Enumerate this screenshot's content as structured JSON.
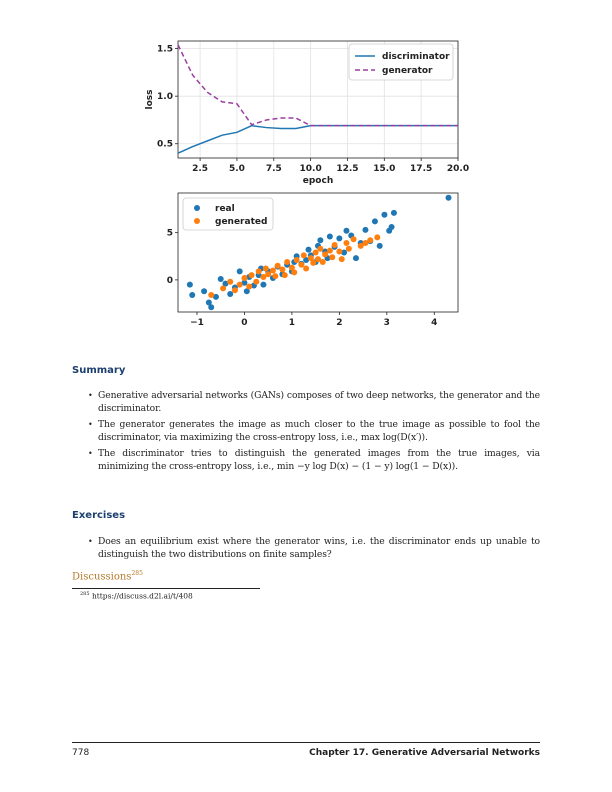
{
  "chart_data": [
    {
      "type": "line",
      "xlabel": "epoch",
      "ylabel": "loss",
      "xlim": [
        1,
        20
      ],
      "ylim": [
        0.35,
        1.58
      ],
      "xticks": [
        "2.5",
        "5.0",
        "7.5",
        "10.0",
        "12.5",
        "15.0",
        "17.5",
        "20.0"
      ],
      "yticks": [
        "0.5",
        "1.0",
        "1.5"
      ],
      "legend_position": "top-right",
      "grid": true,
      "x": [
        1,
        2,
        3,
        4,
        5,
        6,
        7,
        8,
        9,
        10,
        11,
        12,
        13,
        14,
        15,
        16,
        17,
        18,
        19,
        20
      ],
      "series": [
        {
          "name": "discriminator",
          "color": "#1f77b4",
          "style": "solid",
          "values": [
            0.4,
            0.47,
            0.53,
            0.59,
            0.62,
            0.69,
            0.67,
            0.66,
            0.66,
            0.69,
            0.69,
            0.69,
            0.69,
            0.69,
            0.69,
            0.69,
            0.69,
            0.69,
            0.69,
            0.69
          ]
        },
        {
          "name": "generator",
          "color": "#9b3ea0",
          "style": "dashed",
          "values": [
            1.54,
            1.22,
            1.04,
            0.94,
            0.92,
            0.7,
            0.75,
            0.77,
            0.77,
            0.69,
            0.69,
            0.69,
            0.69,
            0.69,
            0.69,
            0.69,
            0.69,
            0.69,
            0.69,
            0.69
          ]
        }
      ]
    },
    {
      "type": "scatter",
      "xlim": [
        -1.4,
        4.5
      ],
      "ylim": [
        -3.4,
        9.2
      ],
      "xticks": [
        "−1",
        "0",
        "1",
        "2",
        "3",
        "4"
      ],
      "yticks": [
        "0",
        "5"
      ],
      "legend_position": "top-left",
      "series": [
        {
          "name": "real",
          "color": "#1f77b4",
          "points": [
            [
              -1.15,
              -0.5
            ],
            [
              -1.1,
              -1.6
            ],
            [
              -0.85,
              -1.2
            ],
            [
              -0.75,
              -2.4
            ],
            [
              -0.7,
              -2.9
            ],
            [
              -0.6,
              -1.8
            ],
            [
              -0.5,
              0.1
            ],
            [
              -0.4,
              -0.4
            ],
            [
              -0.3,
              -1.5
            ],
            [
              -0.2,
              -0.8
            ],
            [
              -0.1,
              0.9
            ],
            [
              0.0,
              -0.3
            ],
            [
              0.05,
              -1.2
            ],
            [
              0.1,
              0.3
            ],
            [
              0.2,
              -0.6
            ],
            [
              0.3,
              0.5
            ],
            [
              0.35,
              1.2
            ],
            [
              0.4,
              -0.5
            ],
            [
              0.5,
              0.9
            ],
            [
              0.6,
              0.2
            ],
            [
              0.7,
              1.4
            ],
            [
              0.8,
              0.6
            ],
            [
              0.9,
              1.6
            ],
            [
              1.0,
              0.9
            ],
            [
              1.05,
              1.9
            ],
            [
              1.1,
              2.5
            ],
            [
              1.2,
              1.7
            ],
            [
              1.3,
              2.1
            ],
            [
              1.35,
              3.2
            ],
            [
              1.4,
              2.6
            ],
            [
              1.5,
              1.9
            ],
            [
              1.55,
              3.6
            ],
            [
              1.6,
              4.2
            ],
            [
              1.7,
              3.0
            ],
            [
              1.75,
              2.3
            ],
            [
              1.8,
              4.6
            ],
            [
              1.9,
              3.5
            ],
            [
              2.0,
              4.4
            ],
            [
              2.1,
              2.9
            ],
            [
              2.15,
              5.2
            ],
            [
              2.25,
              4.7
            ],
            [
              2.35,
              2.3
            ],
            [
              2.45,
              3.9
            ],
            [
              2.55,
              5.3
            ],
            [
              2.65,
              4.1
            ],
            [
              2.75,
              6.2
            ],
            [
              2.85,
              3.6
            ],
            [
              2.95,
              6.9
            ],
            [
              3.05,
              5.2
            ],
            [
              3.1,
              5.6
            ],
            [
              3.15,
              7.1
            ],
            [
              4.3,
              8.7
            ]
          ]
        },
        {
          "name": "generated",
          "color": "#ff7f0e",
          "points": [
            [
              -0.7,
              -1.6
            ],
            [
              -0.45,
              -0.9
            ],
            [
              -0.3,
              -0.2
            ],
            [
              -0.2,
              -1.1
            ],
            [
              -0.1,
              -0.5
            ],
            [
              0.0,
              0.2
            ],
            [
              0.1,
              -0.7
            ],
            [
              0.15,
              0.5
            ],
            [
              0.25,
              -0.2
            ],
            [
              0.3,
              0.9
            ],
            [
              0.4,
              0.3
            ],
            [
              0.45,
              1.2
            ],
            [
              0.5,
              0.6
            ],
            [
              0.6,
              1.0
            ],
            [
              0.65,
              0.4
            ],
            [
              0.7,
              1.5
            ],
            [
              0.8,
              1.1
            ],
            [
              0.85,
              0.5
            ],
            [
              0.9,
              1.9
            ],
            [
              1.0,
              1.3
            ],
            [
              1.05,
              0.8
            ],
            [
              1.1,
              2.1
            ],
            [
              1.2,
              1.6
            ],
            [
              1.25,
              2.6
            ],
            [
              1.3,
              1.2
            ],
            [
              1.4,
              2.3
            ],
            [
              1.45,
              1.8
            ],
            [
              1.5,
              2.9
            ],
            [
              1.55,
              2.2
            ],
            [
              1.6,
              3.3
            ],
            [
              1.65,
              1.9
            ],
            [
              1.7,
              2.7
            ],
            [
              1.8,
              3.1
            ],
            [
              1.85,
              2.4
            ],
            [
              1.9,
              3.7
            ],
            [
              2.0,
              3.0
            ],
            [
              2.05,
              2.2
            ],
            [
              2.15,
              3.9
            ],
            [
              2.2,
              3.3
            ],
            [
              2.3,
              4.3
            ],
            [
              2.45,
              3.6
            ],
            [
              2.55,
              3.9
            ],
            [
              2.65,
              4.2
            ],
            [
              2.8,
              4.5
            ]
          ]
        }
      ]
    }
  ],
  "summary": {
    "heading": "Summary",
    "items": [
      "Generative adversarial networks (GANs) composes of two deep networks, the generator and the discriminator.",
      "The generator generates the image as much closer to the true image as possible to fool the discriminator, via maximizing the cross-entropy loss, i.e., max log(D(x′)).",
      "The discriminator tries to distinguish the generated images from the true images, via minimizing the cross-entropy loss, i.e., min −y log D(x) − (1 − y) log(1 − D(x))."
    ]
  },
  "exercises": {
    "heading": "Exercises",
    "items": [
      "Does an equilibrium exist where the generator wins, i.e. the discriminator ends up unable to distinguish the two distributions on finite samples?"
    ]
  },
  "discussions": {
    "label": "Discussions",
    "ref": "285"
  },
  "footnote": {
    "ref": "285",
    "url": "https://discuss.d2l.ai/t/408"
  },
  "footer": {
    "page": "778",
    "chapter": "Chapter 17.  Generative Adversarial Networks"
  }
}
